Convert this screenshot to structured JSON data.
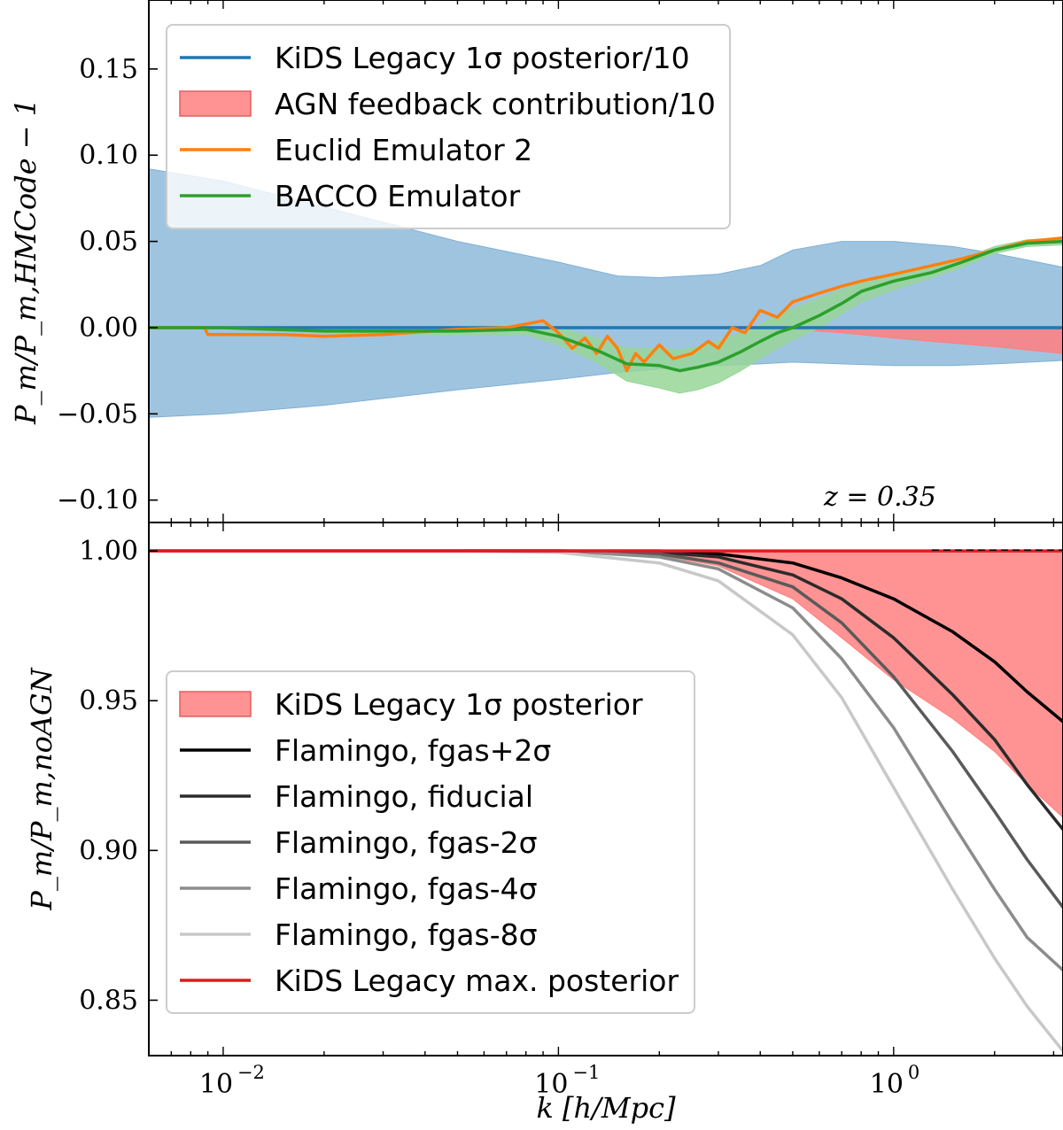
{
  "chart_data": [
    {
      "type": "line",
      "panel": "top",
      "xscale": "log",
      "xlim": [
        0.006,
        3.2
      ],
      "ylim": [
        -0.113,
        0.19
      ],
      "ylabel": "P_m/P_m,HMCode − 1",
      "yticks": [
        -0.1,
        -0.05,
        0.0,
        0.05,
        0.1,
        0.15
      ],
      "ytick_labels": [
        "−0.10",
        "−0.05",
        "0.00",
        "0.05",
        "0.10",
        "0.15"
      ],
      "annotation": "z = 0.35",
      "legend_position": "upper-left",
      "legend": [
        {
          "label": "KiDS Legacy 1σ posterior/10",
          "kind": "line",
          "color": "#1f77b4"
        },
        {
          "label": "AGN feedback contribution/10",
          "kind": "patch",
          "color": "#ff7f7f"
        },
        {
          "label": "Euclid Emulator 2",
          "kind": "line",
          "color": "#ff7f0e"
        },
        {
          "label": "BACCO Emulator",
          "kind": "line",
          "color": "#2ca02c"
        }
      ],
      "series": [
        {
          "name": "KiDS Legacy 1σ posterior/10",
          "color": "#1f77b4",
          "band_color": "#7fb0d6",
          "x": [
            0.006,
            0.01,
            0.02,
            0.05,
            0.1,
            0.15,
            0.2,
            0.3,
            0.4,
            0.5,
            0.7,
            1.0,
            1.5,
            2.0,
            3.2
          ],
          "y": [
            0,
            0,
            0,
            0,
            0,
            0,
            0,
            0,
            0,
            0,
            0,
            0,
            0,
            0,
            0
          ],
          "band_upper": [
            0.092,
            0.085,
            0.07,
            0.05,
            0.038,
            0.03,
            0.029,
            0.031,
            0.036,
            0.045,
            0.05,
            0.05,
            0.047,
            0.043,
            0.035
          ],
          "band_lower": [
            -0.052,
            -0.05,
            -0.045,
            -0.036,
            -0.03,
            -0.026,
            -0.024,
            -0.022,
            -0.021,
            -0.02,
            -0.021,
            -0.022,
            -0.022,
            -0.021,
            -0.019
          ]
        },
        {
          "name": "AGN feedback contribution/10",
          "color": "#d62728",
          "band_color": "#ff7f7f",
          "x": [
            0.006,
            0.1,
            0.3,
            0.5,
            0.7,
            1.0,
            1.5,
            2.0,
            3.2
          ],
          "band_upper": [
            0,
            0,
            0,
            0,
            0,
            0,
            0,
            0,
            0
          ],
          "band_lower": [
            0,
            0,
            0,
            -0.001,
            -0.003,
            -0.006,
            -0.009,
            -0.011,
            -0.015
          ]
        },
        {
          "name": "Euclid Emulator 2",
          "color": "#ff7f0e",
          "band_color": "#ffbf86",
          "x": [
            0.006,
            0.0088,
            0.009,
            0.015,
            0.02,
            0.03,
            0.05,
            0.07,
            0.09,
            0.1,
            0.11,
            0.12,
            0.13,
            0.14,
            0.15,
            0.16,
            0.17,
            0.18,
            0.2,
            0.22,
            0.25,
            0.28,
            0.3,
            0.33,
            0.36,
            0.4,
            0.45,
            0.5,
            0.6,
            0.7,
            0.8,
            1.0,
            1.3,
            1.6,
            2.0,
            2.5,
            3.2
          ],
          "y": [
            0.0,
            0.0,
            -0.004,
            -0.004,
            -0.005,
            -0.004,
            -0.001,
            0.0,
            0.004,
            -0.003,
            -0.012,
            -0.006,
            -0.015,
            -0.005,
            -0.012,
            -0.025,
            -0.015,
            -0.02,
            -0.01,
            -0.018,
            -0.015,
            -0.008,
            -0.012,
            0.0,
            -0.003,
            0.01,
            0.006,
            0.015,
            0.02,
            0.024,
            0.027,
            0.031,
            0.036,
            0.04,
            0.045,
            0.05,
            0.052
          ]
        },
        {
          "name": "BACCO Emulator",
          "color": "#2ca02c",
          "band_color": "#98d698",
          "x": [
            0.006,
            0.01,
            0.02,
            0.05,
            0.08,
            0.1,
            0.13,
            0.16,
            0.2,
            0.23,
            0.26,
            0.3,
            0.35,
            0.4,
            0.45,
            0.5,
            0.6,
            0.7,
            0.8,
            1.0,
            1.3,
            1.6,
            2.0,
            2.5,
            3.2
          ],
          "y": [
            0.0,
            0.0,
            -0.002,
            -0.002,
            -0.001,
            -0.005,
            -0.013,
            -0.021,
            -0.022,
            -0.025,
            -0.023,
            -0.02,
            -0.014,
            -0.008,
            -0.003,
            0.0,
            0.007,
            0.014,
            0.021,
            0.027,
            0.032,
            0.038,
            0.045,
            0.049,
            0.05
          ],
          "band_upper": [
            0.0,
            0.0,
            -0.001,
            0.0,
            0.002,
            0.0,
            -0.006,
            -0.012,
            -0.012,
            -0.013,
            -0.011,
            -0.008,
            -0.003,
            0.002,
            0.007,
            0.011,
            0.017,
            0.022,
            0.027,
            0.031,
            0.035,
            0.04,
            0.047,
            0.051,
            0.052
          ],
          "band_lower": [
            0.0,
            0.0,
            -0.003,
            -0.004,
            -0.004,
            -0.01,
            -0.02,
            -0.031,
            -0.035,
            -0.038,
            -0.036,
            -0.032,
            -0.025,
            -0.018,
            -0.012,
            -0.007,
            0.0,
            0.008,
            0.015,
            0.022,
            0.029,
            0.035,
            0.043,
            0.047,
            0.048
          ]
        }
      ]
    },
    {
      "type": "line",
      "panel": "bottom",
      "xscale": "log",
      "xlim": [
        0.006,
        3.2
      ],
      "ylim": [
        0.8315,
        1.0095
      ],
      "xlabel": "k [h/Mpc]",
      "ylabel": "P_m/P_m,noAGN",
      "xticks": [
        0.01,
        0.1,
        1.0
      ],
      "xtick_labels": [
        "10",
        "10",
        "10"
      ],
      "xtick_exponents": [
        "−2",
        "−1",
        "0"
      ],
      "yticks": [
        0.85,
        0.9,
        0.95,
        1.0
      ],
      "ytick_labels": [
        "0.85",
        "0.90",
        "0.95",
        "1.00"
      ],
      "legend_position": "lower-left",
      "legend": [
        {
          "label": "KiDS Legacy 1σ posterior",
          "kind": "patch",
          "color": "#ff7f7f"
        },
        {
          "label": "Flamingo, fgas+2σ",
          "kind": "line",
          "color": "#000000"
        },
        {
          "label": "Flamingo, fiducial",
          "kind": "line",
          "color": "#2b2b2b"
        },
        {
          "label": "Flamingo, fgas-2σ",
          "kind": "line",
          "color": "#5a5a5a"
        },
        {
          "label": "Flamingo, fgas-4σ",
          "kind": "line",
          "color": "#8c8c8c"
        },
        {
          "label": "Flamingo, fgas-8σ",
          "kind": "line",
          "color": "#c8c8c8"
        },
        {
          "label": "KiDS Legacy max. posterior",
          "kind": "line",
          "color": "#e31a1c"
        }
      ],
      "series": [
        {
          "name": "KiDS Legacy 1σ posterior",
          "color": "#e31a1c",
          "band_color": "#ff8080",
          "x": [
            0.006,
            0.1,
            0.2,
            0.3,
            0.5,
            0.7,
            1.0,
            1.5,
            2.0,
            2.5,
            3.2
          ],
          "band_upper": [
            1.0,
            1.0,
            1.0,
            1.0,
            1.0,
            1.0,
            1.0,
            1.0,
            1.0,
            1.0,
            1.0
          ],
          "band_lower": [
            1.0,
            1.0,
            0.9985,
            0.995,
            0.984,
            0.971,
            0.957,
            0.944,
            0.933,
            0.922,
            0.911
          ]
        },
        {
          "name": "Flamingo, fgas+2σ",
          "color": "#000000",
          "x": [
            0.006,
            0.1,
            0.2,
            0.3,
            0.5,
            0.7,
            1.0,
            1.5,
            2.0,
            2.5,
            3.2
          ],
          "y": [
            1.0,
            1.0,
            1.0,
            0.999,
            0.996,
            0.991,
            0.984,
            0.973,
            0.963,
            0.953,
            0.943
          ]
        },
        {
          "name": "Flamingo, fiducial",
          "color": "#2b2b2b",
          "x": [
            0.006,
            0.1,
            0.2,
            0.3,
            0.5,
            0.7,
            1.0,
            1.5,
            2.0,
            2.5,
            3.2
          ],
          "y": [
            1.0,
            1.0,
            0.9995,
            0.998,
            0.992,
            0.984,
            0.971,
            0.952,
            0.937,
            0.922,
            0.907
          ]
        },
        {
          "name": "Flamingo, fgas-2σ",
          "color": "#5a5a5a",
          "x": [
            0.006,
            0.1,
            0.2,
            0.3,
            0.5,
            0.7,
            1.0,
            1.5,
            2.0,
            2.5,
            3.2
          ],
          "y": [
            1.0,
            1.0,
            0.999,
            0.996,
            0.988,
            0.976,
            0.958,
            0.933,
            0.913,
            0.897,
            0.881
          ]
        },
        {
          "name": "Flamingo, fgas-4σ",
          "color": "#8c8c8c",
          "x": [
            0.006,
            0.1,
            0.2,
            0.3,
            0.5,
            0.7,
            1.0,
            1.5,
            2.0,
            2.5,
            3.2
          ],
          "y": [
            1.0,
            1.0,
            0.998,
            0.994,
            0.981,
            0.964,
            0.941,
            0.909,
            0.887,
            0.871,
            0.86
          ]
        },
        {
          "name": "Flamingo, fgas-8σ",
          "color": "#c8c8c8",
          "x": [
            0.006,
            0.05,
            0.1,
            0.2,
            0.3,
            0.5,
            0.7,
            1.0,
            1.5,
            2.0,
            2.5,
            3.2
          ],
          "y": [
            1.0,
            1.0,
            0.9995,
            0.996,
            0.99,
            0.972,
            0.951,
            0.921,
            0.887,
            0.864,
            0.848,
            0.833
          ]
        },
        {
          "name": "KiDS Legacy max. posterior",
          "color": "#e31a1c",
          "x": [
            0.006,
            0.1,
            1.0,
            3.2
          ],
          "y": [
            1.0,
            1.0,
            1.0,
            1.0
          ]
        }
      ]
    }
  ]
}
